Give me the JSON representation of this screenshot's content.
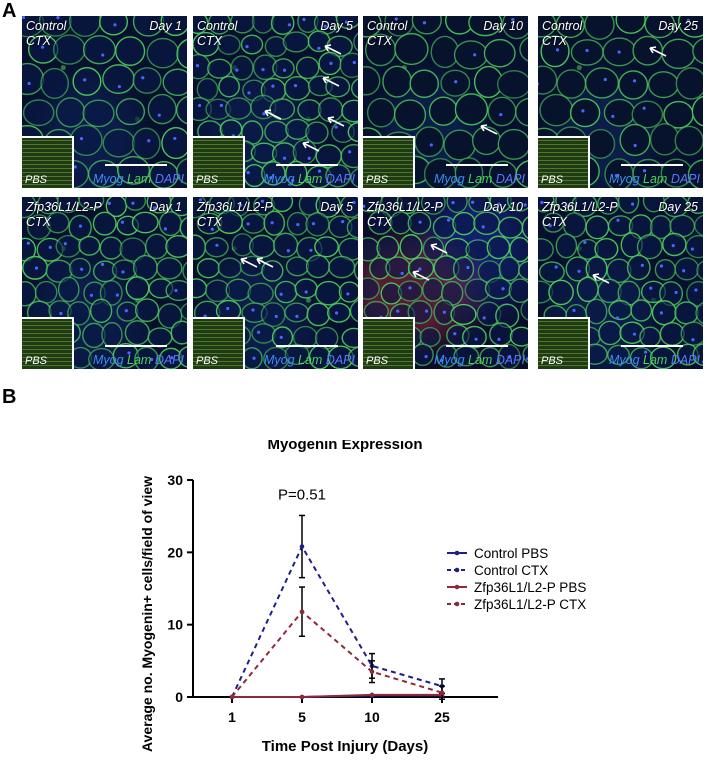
{
  "panel_a": {
    "label": "A",
    "stain_labels": [
      "Myog",
      "Lam",
      "DAPI"
    ],
    "inset_label": "PBS",
    "panels": [
      {
        "condition": "Control",
        "injury": "CTX",
        "day": "Day 1",
        "arrows": 0
      },
      {
        "condition": "Control",
        "injury": "CTX",
        "day": "Day 5",
        "arrows": 5
      },
      {
        "condition": "Control",
        "injury": "CTX",
        "day": "Day 10",
        "arrows": 1
      },
      {
        "condition": "Control",
        "injury": "CTX",
        "day": "Day 25",
        "arrows": 1
      },
      {
        "condition": "Zfp36L1/L2-P",
        "injury": "CTX",
        "day": "Day 1",
        "arrows": 0
      },
      {
        "condition": "Zfp36L1/L2-P",
        "injury": "CTX",
        "day": "Day 5",
        "arrows": 2
      },
      {
        "condition": "Zfp36L1/L2-P",
        "injury": "CTX",
        "day": "Day 10",
        "arrows": 2
      },
      {
        "condition": "Zfp36L1/L2-P",
        "injury": "CTX",
        "day": "Day 25",
        "arrows": 1
      }
    ],
    "colors": {
      "laminin": "#4fd15c",
      "dapi": "#1e3cc8",
      "myogenin": "#3a8ff5"
    }
  },
  "panel_b": {
    "label": "B"
  },
  "chart_data": {
    "type": "line",
    "title": "Myogenin Expression",
    "xlabel": "Time Post Injury (Days)",
    "ylabel": "Average no. Myogenin+ cells/field of view",
    "categories": [
      "1",
      "5",
      "10",
      "25"
    ],
    "ylim": [
      0,
      30
    ],
    "yticks": [
      0,
      10,
      20,
      30
    ],
    "annotation": "P=0.51",
    "legend_position": "right",
    "series": [
      {
        "name": "Control PBS",
        "values": [
          0,
          0,
          0.2,
          0.2
        ],
        "error": [
          0,
          0,
          0,
          0
        ],
        "color": "#1f1f8c",
        "dash": "solid"
      },
      {
        "name": "Control CTX",
        "values": [
          0,
          20.8,
          4.3,
          1.5
        ],
        "error": [
          0,
          4.3,
          1.7,
          1.0
        ],
        "color": "#1f1f8c",
        "dash": "dashed"
      },
      {
        "name": "Zfp36L1/L2-P PBS",
        "values": [
          0,
          0,
          0.3,
          0.3
        ],
        "error": [
          0,
          0,
          0,
          0
        ],
        "color": "#8c2a3a",
        "dash": "solid"
      },
      {
        "name": "Zfp36L1/L2-P CTX",
        "values": [
          0,
          11.8,
          3.5,
          0.6
        ],
        "error": [
          0,
          3.4,
          1.5,
          0.9
        ],
        "color": "#8c2a3a",
        "dash": "dashed"
      }
    ]
  }
}
